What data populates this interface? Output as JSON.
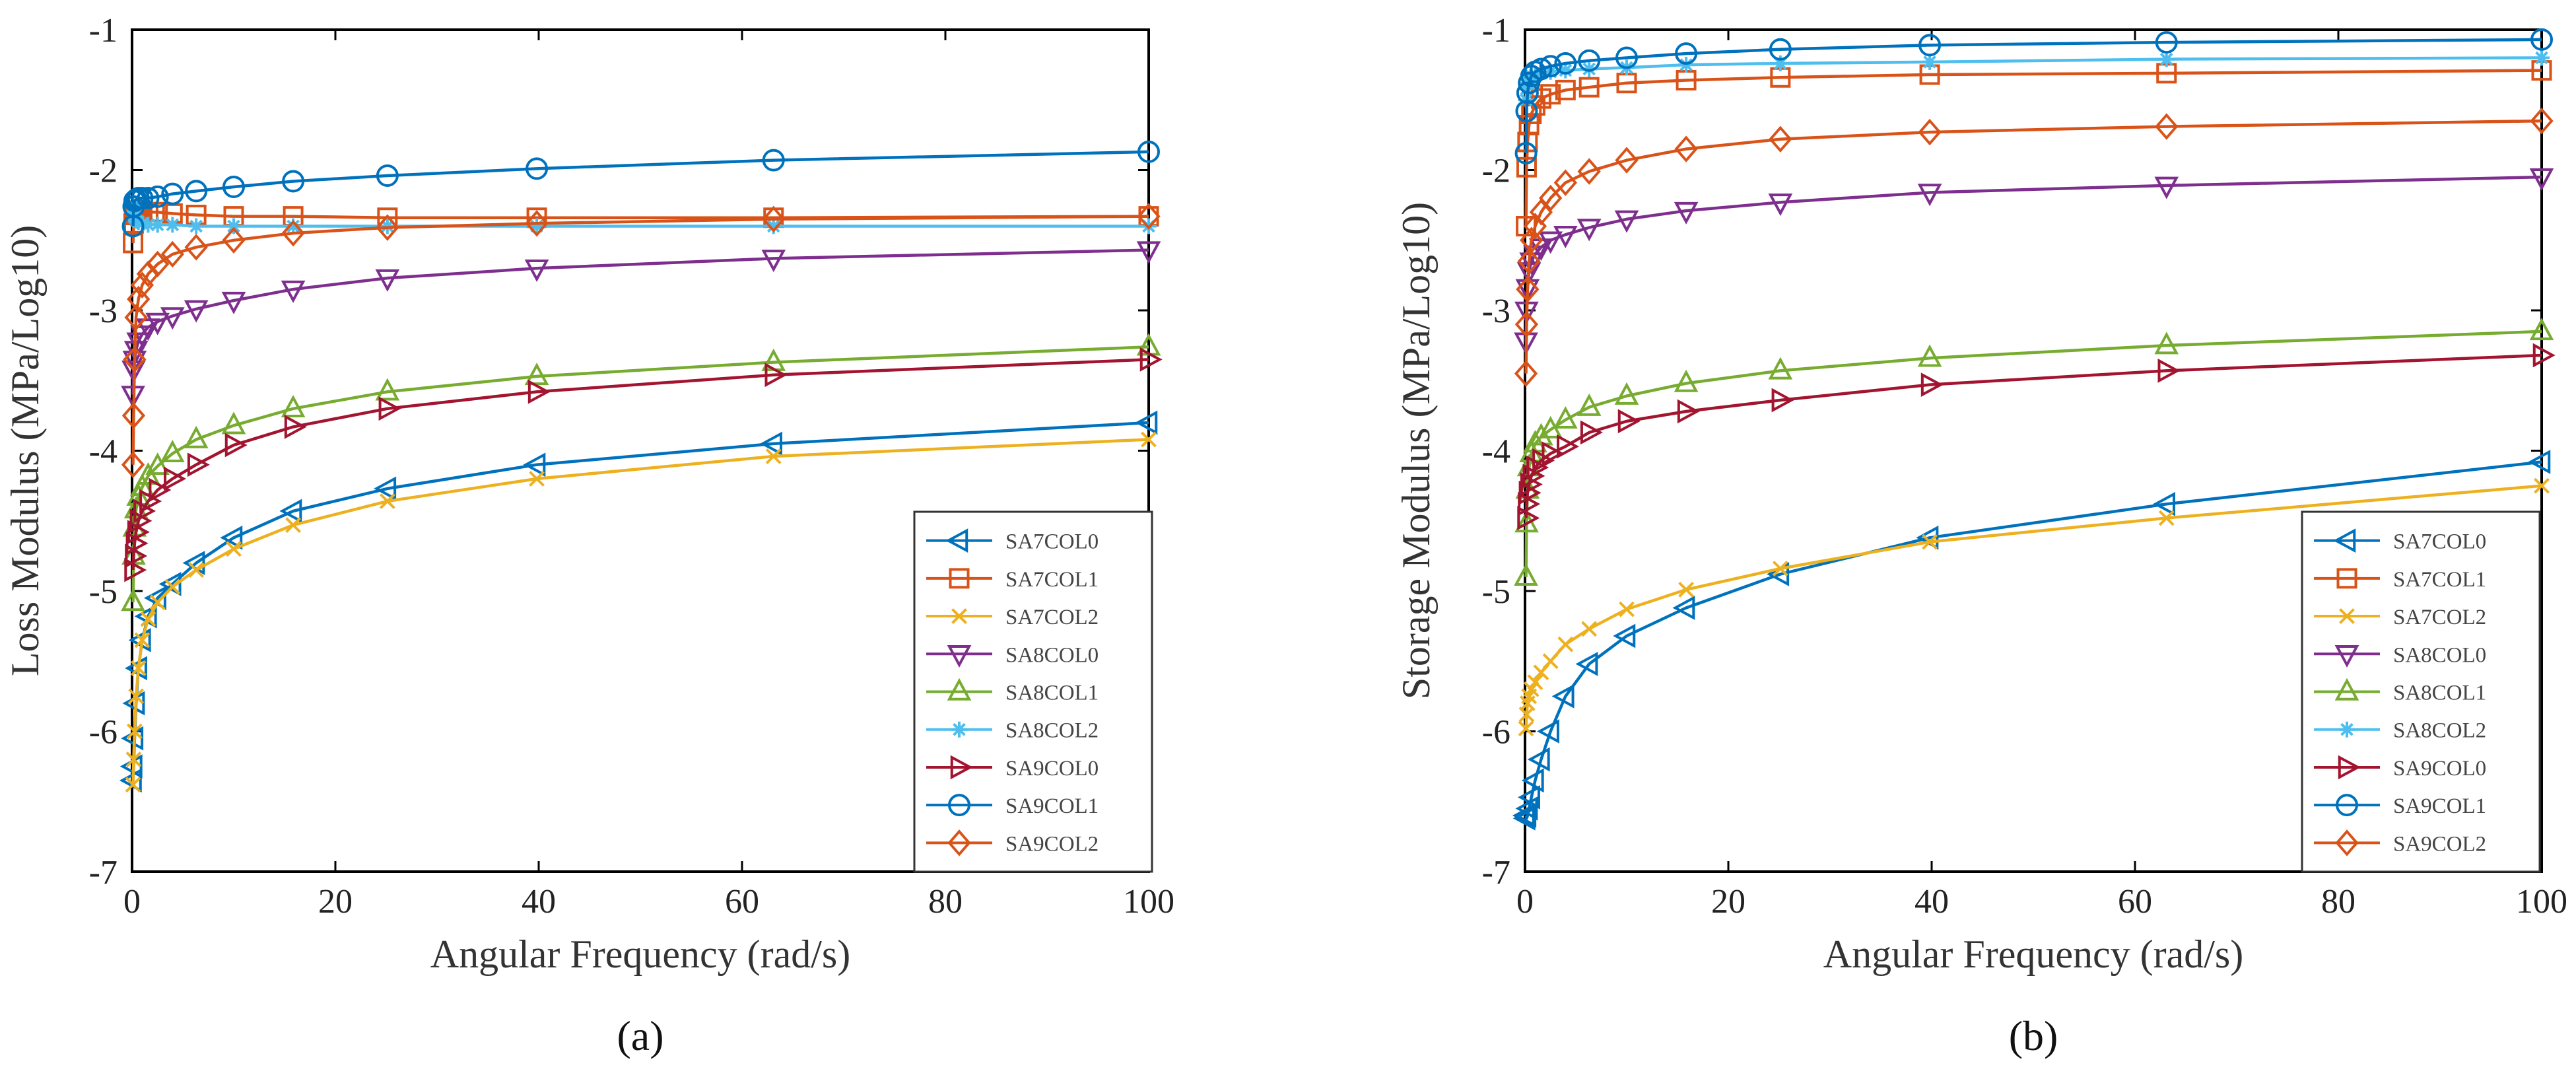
{
  "chart_data": [
    {
      "type": "line",
      "panel_label": "(a)",
      "xlabel": "Angular Frequency (rad/s)",
      "ylabel": "Loss Modulus (MPa/Log10)",
      "xlim": [
        0,
        100
      ],
      "ylim": [
        -7,
        -1
      ],
      "xticks": [
        0,
        20,
        40,
        60,
        80,
        100
      ],
      "yticks": [
        -1,
        -2,
        -3,
        -4,
        -5,
        -6,
        -7
      ],
      "legend_position": "bottom-right",
      "x": [
        0.1,
        0.158,
        0.251,
        0.398,
        0.631,
        1,
        1.585,
        2.512,
        3.981,
        6.31,
        10,
        15.85,
        25.12,
        39.81,
        63.1,
        100
      ],
      "series": [
        {
          "name": "SA7COL0",
          "color": "#0072BD",
          "marker": "triangle-left",
          "values": [
            -6.35,
            -6.25,
            -6.05,
            -5.8,
            -5.55,
            -5.35,
            -5.18,
            -5.05,
            -4.95,
            -4.8,
            -4.62,
            -4.43,
            -4.27,
            -4.1,
            -3.95,
            -3.8
          ]
        },
        {
          "name": "SA7COL1",
          "color": "#D95319",
          "marker": "square",
          "values": [
            -2.52,
            -2.38,
            -2.32,
            -2.3,
            -2.3,
            -2.3,
            -2.3,
            -2.3,
            -2.31,
            -2.32,
            -2.33,
            -2.33,
            -2.34,
            -2.34,
            -2.34,
            -2.33
          ]
        },
        {
          "name": "SA7COL2",
          "color": "#EDB120",
          "marker": "x",
          "values": [
            -6.38,
            -6.2,
            -6.0,
            -5.75,
            -5.55,
            -5.35,
            -5.2,
            -5.08,
            -4.97,
            -4.85,
            -4.7,
            -4.53,
            -4.36,
            -4.2,
            -4.04,
            -3.92
          ]
        },
        {
          "name": "SA8COL0",
          "color": "#7E2F8E",
          "marker": "triangle-down",
          "values": [
            -3.6,
            -3.42,
            -3.35,
            -3.28,
            -3.22,
            -3.17,
            -3.12,
            -3.08,
            -3.04,
            -2.99,
            -2.93,
            -2.85,
            -2.77,
            -2.7,
            -2.63,
            -2.57
          ]
        },
        {
          "name": "SA8COL1",
          "color": "#77AC30",
          "marker": "triangle-up",
          "values": [
            -5.08,
            -4.75,
            -4.55,
            -4.42,
            -4.33,
            -4.26,
            -4.18,
            -4.11,
            -4.02,
            -3.92,
            -3.82,
            -3.7,
            -3.58,
            -3.47,
            -3.37,
            -3.26
          ]
        },
        {
          "name": "SA8COL2",
          "color": "#4DBEEE",
          "marker": "asterisk",
          "values": [
            -2.25,
            -2.3,
            -2.34,
            -2.36,
            -2.37,
            -2.38,
            -2.39,
            -2.39,
            -2.39,
            -2.4,
            -2.4,
            -2.4,
            -2.4,
            -2.4,
            -2.4,
            -2.4
          ]
        },
        {
          "name": "SA9COL0",
          "color": "#A2142F",
          "marker": "triangle-right",
          "values": [
            -4.85,
            -4.75,
            -4.66,
            -4.58,
            -4.5,
            -4.43,
            -4.36,
            -4.28,
            -4.2,
            -4.1,
            -3.96,
            -3.83,
            -3.7,
            -3.58,
            -3.46,
            -3.35
          ]
        },
        {
          "name": "SA9COL1",
          "color": "#0072BD",
          "marker": "circle",
          "values": [
            -2.4,
            -2.26,
            -2.22,
            -2.21,
            -2.2,
            -2.2,
            -2.2,
            -2.19,
            -2.17,
            -2.15,
            -2.12,
            -2.08,
            -2.04,
            -1.99,
            -1.93,
            -1.87
          ]
        },
        {
          "name": "SA9COL2",
          "color": "#D95319",
          "marker": "diamond",
          "values": [
            -4.1,
            -3.75,
            -3.35,
            -3.05,
            -2.92,
            -2.82,
            -2.74,
            -2.67,
            -2.6,
            -2.55,
            -2.5,
            -2.45,
            -2.41,
            -2.38,
            -2.35,
            -2.33
          ]
        }
      ]
    },
    {
      "type": "line",
      "panel_label": "(b)",
      "xlabel": "Angular Frequency (rad/s)",
      "ylabel": "Storage Modulus (MPa/Log10)",
      "xlim": [
        0,
        100
      ],
      "ylim": [
        -7,
        -1
      ],
      "xticks": [
        0,
        20,
        40,
        60,
        80,
        100
      ],
      "yticks": [
        -1,
        -2,
        -3,
        -4,
        -5,
        -6,
        -7
      ],
      "legend_position": "bottom-right",
      "x": [
        0.1,
        0.158,
        0.251,
        0.398,
        0.631,
        1,
        1.585,
        2.512,
        3.981,
        6.31,
        10,
        15.85,
        25.12,
        39.81,
        63.1,
        100
      ],
      "series": [
        {
          "name": "SA7COL0",
          "color": "#0072BD",
          "marker": "triangle-left",
          "values": [
            -6.6,
            -6.62,
            -6.6,
            -6.55,
            -6.47,
            -6.35,
            -6.2,
            -6.0,
            -5.75,
            -5.52,
            -5.32,
            -5.12,
            -4.88,
            -4.62,
            -4.38,
            -4.08
          ]
        },
        {
          "name": "SA7COL1",
          "color": "#D95319",
          "marker": "square",
          "values": [
            -2.4,
            -1.98,
            -1.8,
            -1.68,
            -1.6,
            -1.54,
            -1.49,
            -1.46,
            -1.43,
            -1.41,
            -1.38,
            -1.36,
            -1.34,
            -1.32,
            -1.31,
            -1.29
          ]
        },
        {
          "name": "SA7COL2",
          "color": "#EDB120",
          "marker": "x",
          "values": [
            -5.98,
            -5.88,
            -5.8,
            -5.75,
            -5.7,
            -5.65,
            -5.58,
            -5.5,
            -5.38,
            -5.27,
            -5.13,
            -4.99,
            -4.84,
            -4.65,
            -4.48,
            -4.25
          ]
        },
        {
          "name": "SA8COL0",
          "color": "#7E2F8E",
          "marker": "triangle-down",
          "values": [
            -3.22,
            -3.0,
            -2.84,
            -2.72,
            -2.65,
            -2.6,
            -2.55,
            -2.5,
            -2.46,
            -2.41,
            -2.35,
            -2.29,
            -2.23,
            -2.16,
            -2.11,
            -2.05
          ]
        },
        {
          "name": "SA8COL1",
          "color": "#77AC30",
          "marker": "triangle-up",
          "values": [
            -4.9,
            -4.52,
            -4.28,
            -4.12,
            -4.02,
            -3.95,
            -3.9,
            -3.85,
            -3.78,
            -3.69,
            -3.61,
            -3.52,
            -3.43,
            -3.34,
            -3.25,
            -3.15
          ]
        },
        {
          "name": "SA8COL2",
          "color": "#4DBEEE",
          "marker": "asterisk",
          "values": [
            -1.5,
            -1.42,
            -1.38,
            -1.35,
            -1.33,
            -1.32,
            -1.31,
            -1.3,
            -1.29,
            -1.28,
            -1.27,
            -1.25,
            -1.24,
            -1.23,
            -1.21,
            -1.2
          ]
        },
        {
          "name": "SA9COL0",
          "color": "#A2142F",
          "marker": "triangle-right",
          "values": [
            -4.48,
            -4.38,
            -4.3,
            -4.24,
            -4.18,
            -4.12,
            -4.07,
            -4.02,
            -3.97,
            -3.87,
            -3.79,
            -3.72,
            -3.64,
            -3.53,
            -3.43,
            -3.32
          ]
        },
        {
          "name": "SA9COL1",
          "color": "#0072BD",
          "marker": "circle",
          "values": [
            -1.88,
            -1.58,
            -1.45,
            -1.38,
            -1.33,
            -1.3,
            -1.28,
            -1.26,
            -1.24,
            -1.22,
            -1.2,
            -1.17,
            -1.14,
            -1.11,
            -1.09,
            -1.07
          ]
        },
        {
          "name": "SA9COL2",
          "color": "#D95319",
          "marker": "diamond",
          "values": [
            -3.45,
            -3.1,
            -2.85,
            -2.65,
            -2.5,
            -2.4,
            -2.3,
            -2.2,
            -2.09,
            -2.01,
            -1.93,
            -1.85,
            -1.78,
            -1.73,
            -1.69,
            -1.65
          ]
        }
      ]
    }
  ]
}
